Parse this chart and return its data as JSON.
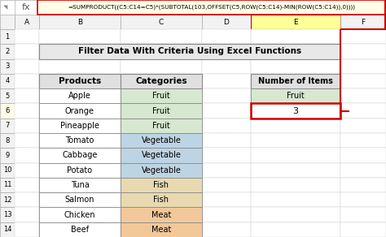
{
  "formula_bar_text": "=SUMPRODUCT((C5:C14=C5)*(SUBTOTAL(103,OFFSET(C5,ROW(C5:C14)-MIN(ROW(C5:C14)),0))))",
  "title": "Filter Data With Criteria Using Excel Functions",
  "col_headers": [
    "Products",
    "Categories"
  ],
  "products": [
    "Apple",
    "Orange",
    "Pineapple",
    "Tomato",
    "Cabbage",
    "Potato",
    "Tuna",
    "Salmon",
    "Chicken",
    "Beef"
  ],
  "categories": [
    "Fruit",
    "Fruit",
    "Fruit",
    "Vegetable",
    "Vegetable",
    "Vegetable",
    "Fish",
    "Fish",
    "Meat",
    "Meat"
  ],
  "cat_colors": {
    "Fruit": "#d6e8d0",
    "Vegetable": "#bdd4e4",
    "Fish": "#e8d9b0",
    "Meat": "#f2c89a"
  },
  "right_table_header": "Number of Items",
  "right_table_label": "Fruit",
  "right_table_value": "3",
  "formula_bar_bg": "#fffde7",
  "header_bg": "#e0e0e0",
  "title_bg": "#e8e8e8",
  "red_line_color": "#cc0000",
  "fx_label": "fx",
  "col_header_bg": "#f2f2f2",
  "row_header_bg": "#f2f2f2",
  "col_E_header_bg": "#ffff99",
  "row6_header_bg": "#fffde7",
  "watermark_color": "#cccccc"
}
